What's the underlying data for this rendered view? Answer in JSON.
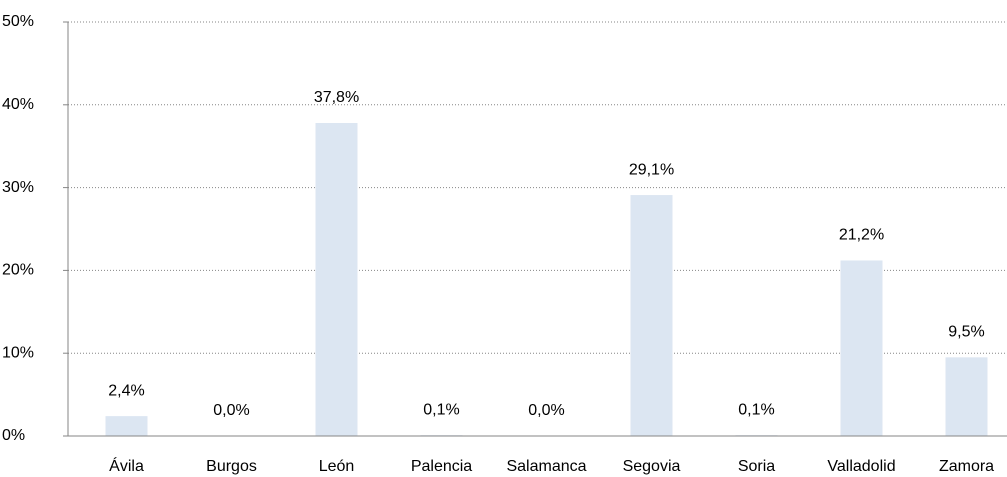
{
  "chart_data": {
    "type": "bar",
    "categories": [
      "Ávila",
      "Burgos",
      "León",
      "Palencia",
      "Salamanca",
      "Segovia",
      "Soria",
      "Valladolid",
      "Zamora"
    ],
    "values": [
      2.4,
      0.0,
      37.8,
      0.1,
      0.0,
      29.1,
      0.1,
      21.2,
      9.5
    ],
    "value_labels": [
      "2,4%",
      "0,0%",
      "37,8%",
      "0,1%",
      "0,0%",
      "29,1%",
      "0,1%",
      "21,2%",
      "9,5%"
    ],
    "color": "#dce6f2",
    "ylim": [
      0,
      50
    ],
    "yticks": [
      {
        "value": 0,
        "label": "0%"
      },
      {
        "value": 10,
        "label": "10%"
      },
      {
        "value": 20,
        "label": "20%"
      },
      {
        "value": 30,
        "label": "30%"
      },
      {
        "value": 40,
        "label": "40%"
      },
      {
        "value": 50,
        "label": "50%"
      }
    ],
    "grid": true
  }
}
